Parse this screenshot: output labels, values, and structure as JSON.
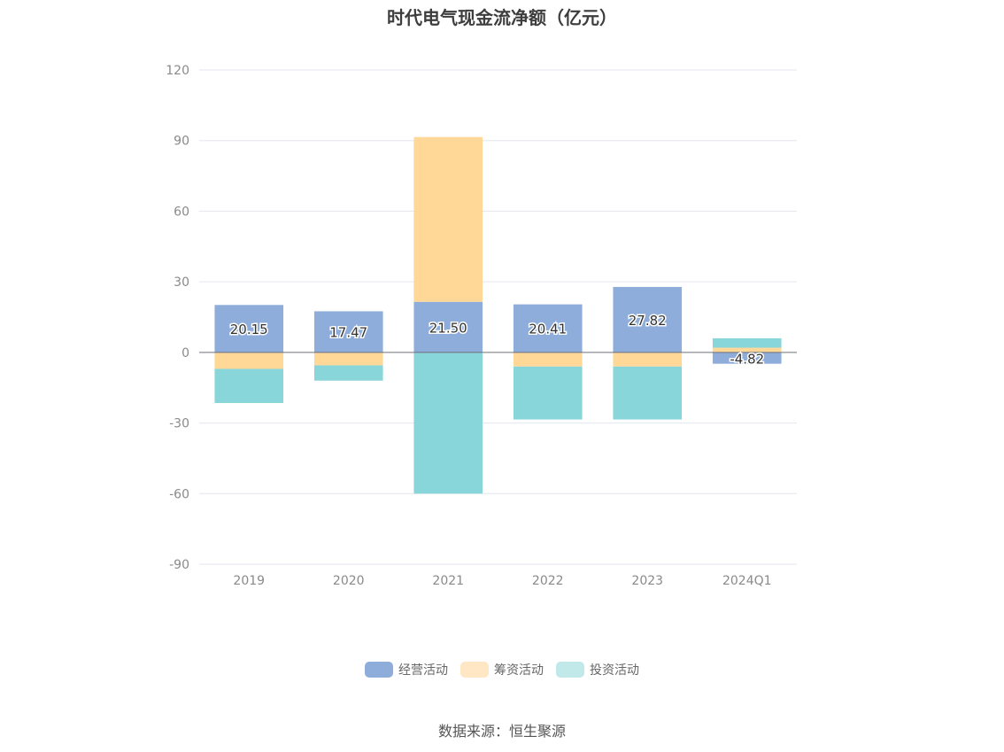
{
  "chart_data": {
    "type": "bar",
    "stacked": true,
    "title": "时代电气现金流净额（亿元）",
    "categories": [
      "2019",
      "2020",
      "2021",
      "2022",
      "2023",
      "2024Q1"
    ],
    "ylim": [
      -90,
      120
    ],
    "yticks": [
      120,
      90,
      60,
      30,
      0,
      -30,
      -60,
      -90
    ],
    "grid": true,
    "legend_position": "bottom",
    "series": [
      {
        "name": "经营活动",
        "color": "#8eaddb",
        "values": [
          20.15,
          17.47,
          21.5,
          20.41,
          27.82,
          -4.82
        ],
        "labels": [
          "20.15",
          "17.47",
          "21.50",
          "20.41",
          "27.82",
          "-4.82"
        ]
      },
      {
        "name": "筹资活动",
        "color": "#ffd898",
        "values": [
          -7.0,
          -5.5,
          70.0,
          -6.0,
          -6.0,
          2.0
        ]
      },
      {
        "name": "投资活动",
        "color": "#88d6d9",
        "values": [
          -14.5,
          -6.5,
          -60.0,
          -22.5,
          -22.5,
          4.0
        ]
      }
    ]
  },
  "legend": [
    {
      "label": "经营活动",
      "color": "#8eaddb"
    },
    {
      "label": "筹资活动",
      "color": "#ffe6c4"
    },
    {
      "label": "投资活动",
      "color": "#c2e9ea"
    }
  ],
  "source": "数据来源：恒生聚源"
}
